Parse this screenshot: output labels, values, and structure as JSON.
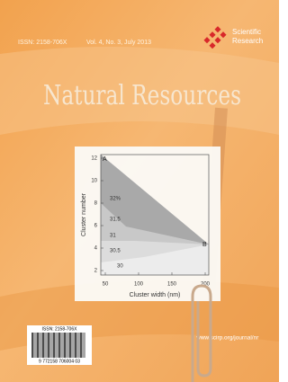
{
  "header": {
    "issn": "ISSN: 2158-706X",
    "volume": "Vol. 4, No. 3, July 2013",
    "publisher": [
      "Scientific",
      "Research"
    ]
  },
  "title": "Natural Resources",
  "figure": {
    "x_label": "Cluster width (nm)",
    "y_label": "Cluster number",
    "xticks": [
      50,
      100,
      150,
      200
    ],
    "yticks": [
      2,
      4,
      6,
      8,
      10,
      12
    ],
    "contour_labels": [
      "32%",
      "31.5",
      "31",
      "30.5",
      "30"
    ],
    "corner_labels": [
      "A",
      "B"
    ]
  },
  "barcode": {
    "issn": "ISSN: 2158-706X",
    "digits": "9 772158 706004 03"
  },
  "url": "www.scirp.org/journal/nr"
}
